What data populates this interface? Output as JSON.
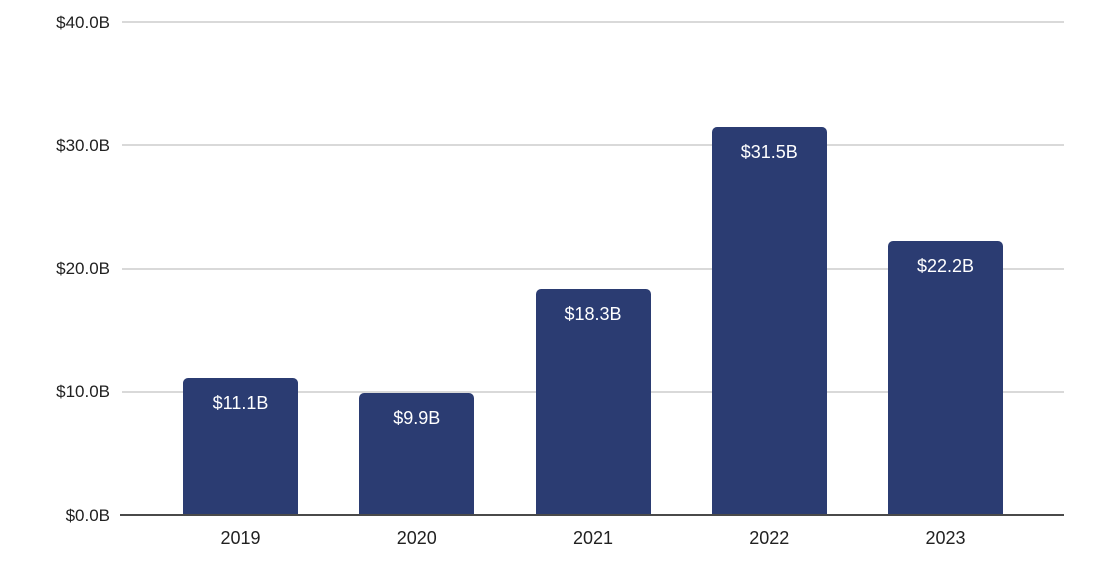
{
  "chart_data": {
    "type": "bar",
    "title": "",
    "categories": [
      "2019",
      "2020",
      "2021",
      "2022",
      "2023"
    ],
    "values": [
      11.1,
      9.9,
      18.3,
      31.5,
      22.2
    ],
    "value_labels": [
      "$11.1B",
      "$9.9B",
      "$18.3B",
      "$31.5B",
      "$22.2B"
    ],
    "series_unit": "B",
    "currency": "$",
    "y_ticks": [
      {
        "value": 0,
        "label": "$0.0B"
      },
      {
        "value": 10,
        "label": "$10.0B"
      },
      {
        "value": 20,
        "label": "$20.0B"
      },
      {
        "value": 30,
        "label": "$30.0B"
      },
      {
        "value": 40,
        "label": "$40.0B"
      }
    ],
    "ylim": [
      0,
      40
    ],
    "xlabel": "",
    "ylabel": "",
    "legend": "none",
    "grid": "horizontal",
    "colors": {
      "bar": "#2b3c72",
      "value_label": "#ffffff",
      "gridline": "#d9d9d9",
      "axis_line": "#4a4a4a",
      "tick_label": "#212121",
      "background": "#ffffff"
    }
  }
}
